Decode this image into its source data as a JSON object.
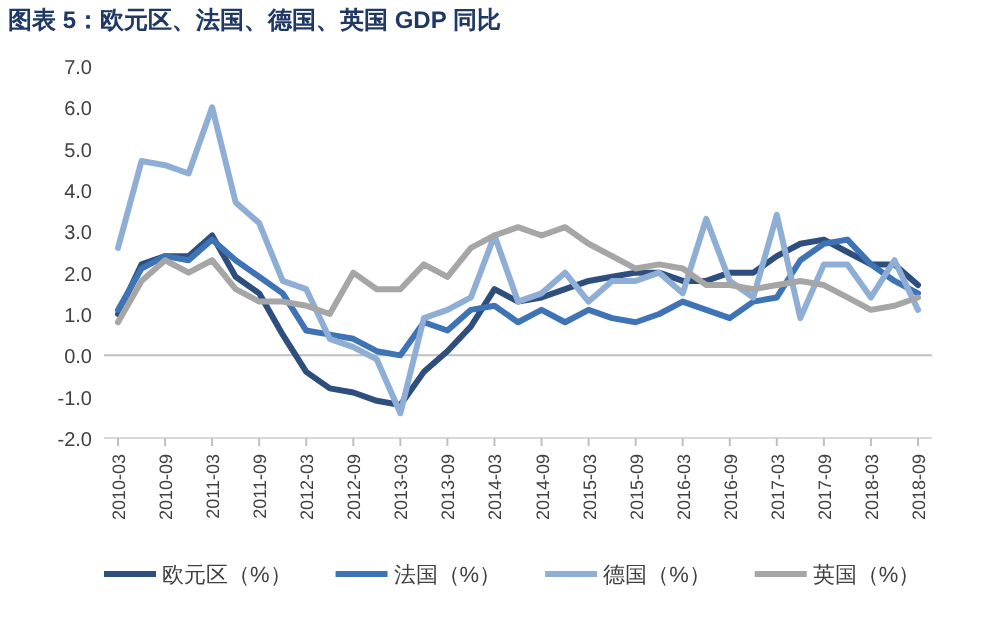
{
  "chart_data": {
    "type": "line",
    "title": "图表 5：欧元区、法国、德国、英国 GDP 同比",
    "categories": [
      "2010-03",
      null,
      "2010-09",
      null,
      "2011-03",
      null,
      "2011-09",
      null,
      "2012-03",
      null,
      "2012-09",
      null,
      "2013-03",
      null,
      "2013-09",
      null,
      "2014-03",
      null,
      "2014-09",
      null,
      "2015-03",
      null,
      "2015-09",
      null,
      "2016-03",
      null,
      "2016-09",
      null,
      "2017-03",
      null,
      "2017-09",
      null,
      "2018-03",
      null,
      "2018-09"
    ],
    "series": [
      {
        "name": "欧元区（%）",
        "color": "#2e4e7e",
        "values": [
          1.0,
          2.2,
          2.4,
          2.4,
          2.9,
          1.9,
          1.5,
          0.5,
          -0.4,
          -0.8,
          -0.9,
          -1.1,
          -1.2,
          -0.4,
          0.1,
          0.7,
          1.6,
          1.3,
          1.4,
          1.6,
          1.8,
          1.9,
          2.0,
          2.0,
          1.8,
          1.8,
          2.0,
          2.0,
          2.4,
          2.7,
          2.8,
          2.5,
          2.2,
          2.2,
          1.7
        ]
      },
      {
        "name": "法国（%）",
        "color": "#3e74b5",
        "values": [
          1.1,
          2.1,
          2.4,
          2.3,
          2.8,
          2.3,
          1.9,
          1.5,
          0.6,
          0.5,
          0.4,
          0.1,
          0.0,
          0.8,
          0.6,
          1.1,
          1.2,
          0.8,
          1.1,
          0.8,
          1.1,
          0.9,
          0.8,
          1.0,
          1.3,
          1.1,
          0.9,
          1.3,
          1.4,
          2.3,
          2.7,
          2.8,
          2.2,
          1.8,
          1.5
        ]
      },
      {
        "name": "德国（%）",
        "color": "#8faed6",
        "values": [
          2.6,
          4.7,
          4.6,
          4.4,
          6.0,
          3.7,
          3.2,
          1.8,
          1.6,
          0.4,
          0.2,
          -0.1,
          -1.4,
          0.9,
          1.1,
          1.4,
          2.9,
          1.3,
          1.5,
          2.0,
          1.3,
          1.8,
          1.8,
          2.0,
          1.5,
          3.3,
          1.8,
          1.4,
          3.4,
          0.9,
          2.2,
          2.2,
          1.4,
          2.3,
          1.1
        ]
      },
      {
        "name": "英国（%）",
        "color": "#a6a6a6",
        "values": [
          0.8,
          1.8,
          2.3,
          2.0,
          2.3,
          1.6,
          1.3,
          1.3,
          1.2,
          1.0,
          2.0,
          1.6,
          1.6,
          2.2,
          1.9,
          2.6,
          2.9,
          3.1,
          2.9,
          3.1,
          2.7,
          2.4,
          2.1,
          2.2,
          2.1,
          1.7,
          1.7,
          1.6,
          1.7,
          1.8,
          1.7,
          1.4,
          1.1,
          1.2,
          1.4
        ]
      }
    ],
    "ylim": [
      -2,
      7
    ],
    "yticks": [
      {
        "value": -2,
        "label": "-2.0"
      },
      {
        "value": -1,
        "label": "-1.0"
      },
      {
        "value": 0,
        "label": "0.0"
      },
      {
        "value": 1,
        "label": "1.0"
      },
      {
        "value": 2,
        "label": "2.0"
      },
      {
        "value": 3,
        "label": "3.0"
      },
      {
        "value": 4,
        "label": "4.0"
      },
      {
        "value": 5,
        "label": "5.0"
      },
      {
        "value": 6,
        "label": "6.0"
      },
      {
        "value": 7,
        "label": "7.0"
      }
    ],
    "legend": "bottom"
  }
}
